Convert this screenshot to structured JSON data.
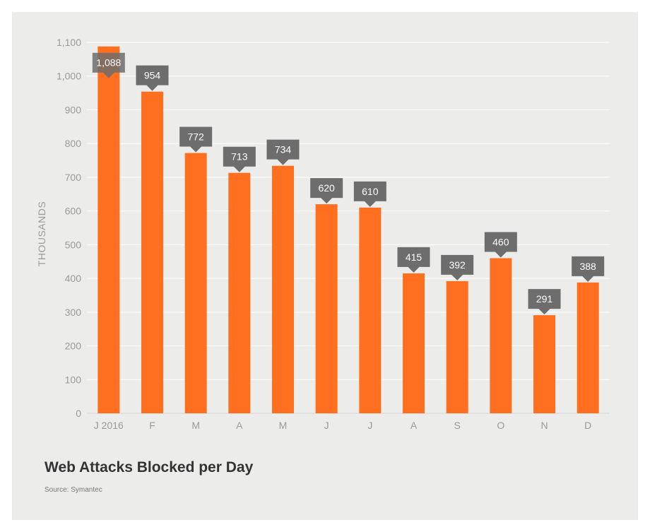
{
  "chart_data": {
    "type": "bar",
    "title": "Web Attacks Blocked per Day",
    "source": "Source: Symantec",
    "ylabel": "THOUSANDS",
    "xlabel": "",
    "ylim": [
      0,
      1100
    ],
    "yticks": [
      "0",
      "100",
      "200",
      "300",
      "400",
      "500",
      "600",
      "700",
      "800",
      "900",
      "1,000",
      "1,100"
    ],
    "ytick_values": [
      0,
      100,
      200,
      300,
      400,
      500,
      600,
      700,
      800,
      900,
      1000,
      1100
    ],
    "categories": [
      "J 2016",
      "F",
      "M",
      "A",
      "M",
      "J",
      "J",
      "A",
      "S",
      "O",
      "N",
      "D"
    ],
    "values": [
      1088,
      954,
      772,
      713,
      734,
      620,
      610,
      415,
      392,
      460,
      291,
      388
    ],
    "value_labels": [
      "1,088",
      "954",
      "772",
      "713",
      "734",
      "620",
      "610",
      "415",
      "392",
      "460",
      "291",
      "388"
    ],
    "grid": true,
    "legend": "none",
    "colors": {
      "bar": "#ff6f1f",
      "label_box": "#6d6d6d",
      "background": "#ececeb",
      "grid": "#ffffff"
    }
  }
}
